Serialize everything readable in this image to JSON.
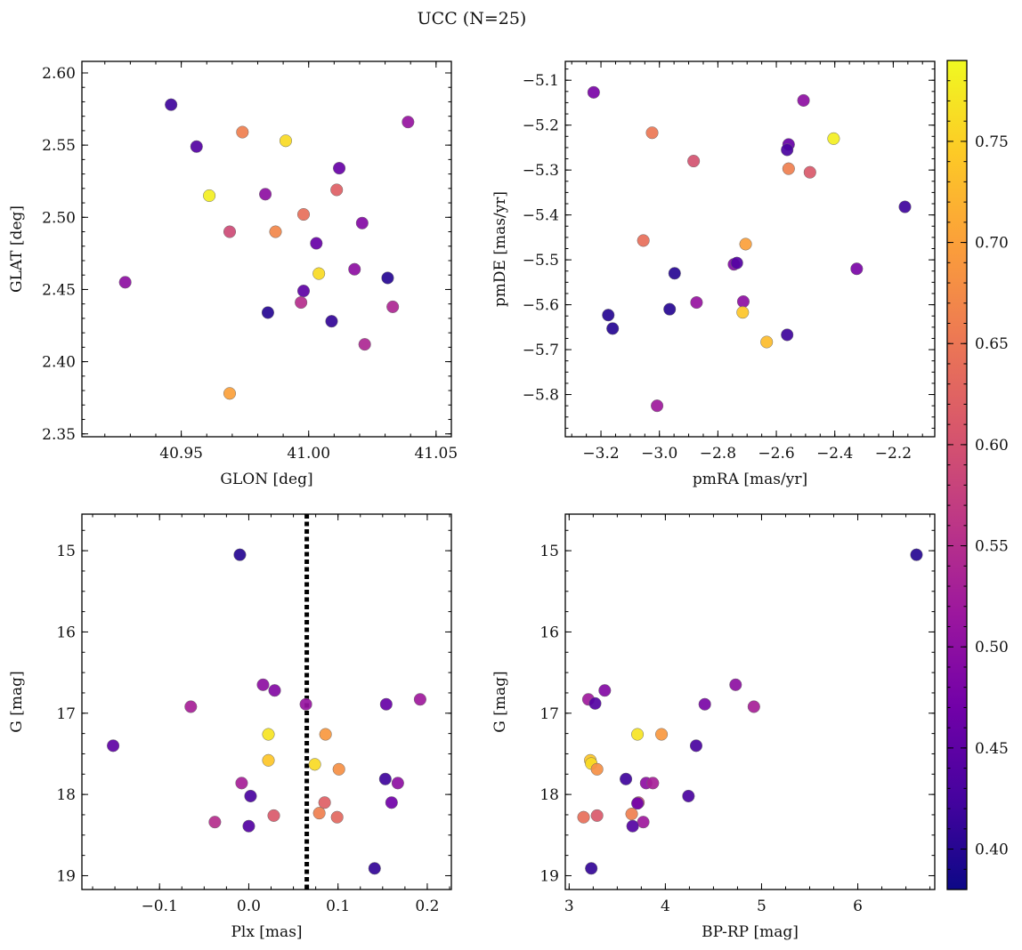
{
  "title": "UCC (N=25)",
  "colorbar": {
    "min": 0.38,
    "max": 0.79,
    "ticks": [
      0.4,
      0.45,
      0.5,
      0.55,
      0.6,
      0.65,
      0.7,
      0.75
    ],
    "tick_labels": [
      "0.40",
      "0.45",
      "0.50",
      "0.55",
      "0.60",
      "0.65",
      "0.70",
      "0.75"
    ],
    "colormap": [
      "#0d0887",
      "#46039f",
      "#7201a8",
      "#9c179e",
      "#bd3786",
      "#d8576b",
      "#ed7953",
      "#fb9f3a",
      "#fdca26",
      "#f0f921"
    ]
  },
  "chart_data": [
    {
      "type": "scatter",
      "title": "",
      "xlabel": "GLON [deg]",
      "ylabel": "GLAT [deg]",
      "xlim": [
        40.911,
        41.056
      ],
      "ylim": [
        2.348,
        2.608
      ],
      "x_ticks": [
        40.95,
        41.0,
        41.05
      ],
      "x_tick_labels": [
        "40.95",
        "41.00",
        "41.05"
      ],
      "y_ticks": [
        2.35,
        2.4,
        2.45,
        2.5,
        2.55,
        2.6
      ],
      "y_tick_labels": [
        "2.35",
        "2.40",
        "2.45",
        "2.50",
        "2.55",
        "2.60"
      ],
      "points": [
        {
          "x": 40.946,
          "y": 2.578,
          "c": 0.42
        },
        {
          "x": 40.956,
          "y": 2.549,
          "c": 0.44
        },
        {
          "x": 40.974,
          "y": 2.559,
          "c": 0.66
        },
        {
          "x": 40.991,
          "y": 2.553,
          "c": 0.76
        },
        {
          "x": 41.039,
          "y": 2.566,
          "c": 0.51
        },
        {
          "x": 41.012,
          "y": 2.534,
          "c": 0.46
        },
        {
          "x": 40.961,
          "y": 2.515,
          "c": 0.78
        },
        {
          "x": 40.983,
          "y": 2.516,
          "c": 0.5
        },
        {
          "x": 41.011,
          "y": 2.519,
          "c": 0.62
        },
        {
          "x": 40.998,
          "y": 2.502,
          "c": 0.64
        },
        {
          "x": 41.021,
          "y": 2.496,
          "c": 0.49
        },
        {
          "x": 40.969,
          "y": 2.49,
          "c": 0.59
        },
        {
          "x": 40.987,
          "y": 2.49,
          "c": 0.67
        },
        {
          "x": 41.003,
          "y": 2.482,
          "c": 0.46
        },
        {
          "x": 41.004,
          "y": 2.461,
          "c": 0.76
        },
        {
          "x": 41.018,
          "y": 2.464,
          "c": 0.5
        },
        {
          "x": 40.928,
          "y": 2.455,
          "c": 0.5
        },
        {
          "x": 41.031,
          "y": 2.458,
          "c": 0.4
        },
        {
          "x": 40.998,
          "y": 2.449,
          "c": 0.45
        },
        {
          "x": 40.997,
          "y": 2.441,
          "c": 0.55
        },
        {
          "x": 41.033,
          "y": 2.438,
          "c": 0.54
        },
        {
          "x": 40.984,
          "y": 2.434,
          "c": 0.4
        },
        {
          "x": 41.009,
          "y": 2.428,
          "c": 0.41
        },
        {
          "x": 41.022,
          "y": 2.412,
          "c": 0.54
        },
        {
          "x": 40.969,
          "y": 2.378,
          "c": 0.7
        }
      ]
    },
    {
      "type": "scatter",
      "title": "",
      "xlabel": "pmRA [mas/yr]",
      "ylabel": "pmDE [mas/yr]",
      "xlim": [
        -3.322,
        -2.058
      ],
      "ylim": [
        -5.894,
        -5.058
      ],
      "x_ticks": [
        -3.2,
        -3.0,
        -2.8,
        -2.6,
        -2.4,
        -2.2
      ],
      "x_tick_labels": [
        "−3.2",
        "−3.0",
        "−2.8",
        "−2.6",
        "−2.4",
        "−2.2"
      ],
      "y_ticks": [
        -5.8,
        -5.7,
        -5.6,
        -5.5,
        -5.4,
        -5.3,
        -5.2,
        -5.1
      ],
      "y_tick_labels": [
        "−5.8",
        "−5.7",
        "−5.6",
        "−5.5",
        "−5.4",
        "−5.3",
        "−5.2",
        "−5.1"
      ],
      "points": [
        {
          "x": -3.225,
          "y": -5.127,
          "c": 0.48
        },
        {
          "x": -2.507,
          "y": -5.145,
          "c": 0.5
        },
        {
          "x": -3.025,
          "y": -5.217,
          "c": 0.65
        },
        {
          "x": -2.404,
          "y": -5.23,
          "c": 0.78
        },
        {
          "x": -2.558,
          "y": -5.243,
          "c": 0.46
        },
        {
          "x": -2.563,
          "y": -5.255,
          "c": 0.43
        },
        {
          "x": -2.883,
          "y": -5.28,
          "c": 0.6
        },
        {
          "x": -2.558,
          "y": -5.297,
          "c": 0.66
        },
        {
          "x": -2.485,
          "y": -5.305,
          "c": 0.61
        },
        {
          "x": -2.16,
          "y": -5.382,
          "c": 0.42
        },
        {
          "x": -3.055,
          "y": -5.457,
          "c": 0.64
        },
        {
          "x": -2.705,
          "y": -5.465,
          "c": 0.7
        },
        {
          "x": -2.745,
          "y": -5.51,
          "c": 0.49
        },
        {
          "x": -2.735,
          "y": -5.507,
          "c": 0.44
        },
        {
          "x": -2.325,
          "y": -5.52,
          "c": 0.48
        },
        {
          "x": -2.948,
          "y": -5.53,
          "c": 0.4
        },
        {
          "x": -2.713,
          "y": -5.593,
          "c": 0.5
        },
        {
          "x": -2.873,
          "y": -5.595,
          "c": 0.51
        },
        {
          "x": -2.965,
          "y": -5.61,
          "c": 0.4
        },
        {
          "x": -2.715,
          "y": -5.617,
          "c": 0.74
        },
        {
          "x": -3.175,
          "y": -5.623,
          "c": 0.4
        },
        {
          "x": -3.16,
          "y": -5.653,
          "c": 0.4
        },
        {
          "x": -2.563,
          "y": -5.667,
          "c": 0.42
        },
        {
          "x": -2.633,
          "y": -5.683,
          "c": 0.73
        },
        {
          "x": -3.008,
          "y": -5.825,
          "c": 0.52
        }
      ]
    },
    {
      "type": "scatter",
      "title": "",
      "xlabel": "Plx [mas]",
      "ylabel": "G [mag]",
      "xlim": [
        -0.187,
        0.227
      ],
      "ylim": [
        19.17,
        14.55
      ],
      "y_inverted": true,
      "x_ticks": [
        -0.1,
        0.0,
        0.1,
        0.2
      ],
      "x_tick_labels": [
        "−0.1",
        "0.0",
        "0.1",
        "0.2"
      ],
      "y_ticks": [
        15,
        16,
        17,
        18,
        19
      ],
      "y_tick_labels": [
        "15",
        "16",
        "17",
        "18",
        "19"
      ],
      "vline": {
        "x": 0.065,
        "style": "dotted",
        "color": "#000000"
      },
      "points": [
        {
          "x": -0.01,
          "y": 15.05,
          "c": 0.4
        },
        {
          "x": 0.016,
          "y": 16.65,
          "c": 0.5
        },
        {
          "x": 0.029,
          "y": 16.72,
          "c": 0.49
        },
        {
          "x": 0.192,
          "y": 16.83,
          "c": 0.52
        },
        {
          "x": -0.065,
          "y": 16.92,
          "c": 0.53
        },
        {
          "x": 0.064,
          "y": 16.89,
          "c": 0.51
        },
        {
          "x": 0.154,
          "y": 16.89,
          "c": 0.46
        },
        {
          "x": -0.152,
          "y": 17.4,
          "c": 0.45
        },
        {
          "x": 0.022,
          "y": 17.26,
          "c": 0.77
        },
        {
          "x": 0.086,
          "y": 17.26,
          "c": 0.69
        },
        {
          "x": 0.022,
          "y": 17.58,
          "c": 0.74
        },
        {
          "x": 0.074,
          "y": 17.63,
          "c": 0.76
        },
        {
          "x": 0.101,
          "y": 17.69,
          "c": 0.68
        },
        {
          "x": 0.153,
          "y": 17.81,
          "c": 0.42
        },
        {
          "x": 0.167,
          "y": 17.86,
          "c": 0.5
        },
        {
          "x": -0.008,
          "y": 17.86,
          "c": 0.53
        },
        {
          "x": 0.002,
          "y": 18.02,
          "c": 0.43
        },
        {
          "x": 0.085,
          "y": 18.1,
          "c": 0.62
        },
        {
          "x": 0.16,
          "y": 18.1,
          "c": 0.47
        },
        {
          "x": 0.079,
          "y": 18.23,
          "c": 0.66
        },
        {
          "x": 0.028,
          "y": 18.26,
          "c": 0.61
        },
        {
          "x": 0.099,
          "y": 18.28,
          "c": 0.63
        },
        {
          "x": -0.038,
          "y": 18.34,
          "c": 0.55
        },
        {
          "x": 0.0,
          "y": 18.39,
          "c": 0.44
        },
        {
          "x": 0.141,
          "y": 18.91,
          "c": 0.41
        }
      ]
    },
    {
      "type": "scatter",
      "title": "",
      "xlabel": "BP-RP [mag]",
      "ylabel": "G [mag]",
      "xlim": [
        2.96,
        6.8
      ],
      "ylim": [
        19.17,
        14.55
      ],
      "y_inverted": true,
      "x_ticks": [
        3,
        4,
        5,
        6
      ],
      "x_tick_labels": [
        "3",
        "4",
        "5",
        "6"
      ],
      "y_ticks": [
        15,
        16,
        17,
        18,
        19
      ],
      "y_tick_labels": [
        "15",
        "16",
        "17",
        "18",
        "19"
      ],
      "points": [
        {
          "x": 6.61,
          "y": 15.05,
          "c": 0.4
        },
        {
          "x": 4.73,
          "y": 16.65,
          "c": 0.5
        },
        {
          "x": 3.37,
          "y": 16.72,
          "c": 0.49
        },
        {
          "x": 3.2,
          "y": 16.83,
          "c": 0.52
        },
        {
          "x": 3.27,
          "y": 16.88,
          "c": 0.44
        },
        {
          "x": 4.41,
          "y": 16.89,
          "c": 0.48
        },
        {
          "x": 4.92,
          "y": 16.92,
          "c": 0.53
        },
        {
          "x": 3.71,
          "y": 17.26,
          "c": 0.77
        },
        {
          "x": 3.96,
          "y": 17.26,
          "c": 0.69
        },
        {
          "x": 4.32,
          "y": 17.4,
          "c": 0.43
        },
        {
          "x": 3.22,
          "y": 17.58,
          "c": 0.74
        },
        {
          "x": 3.23,
          "y": 17.62,
          "c": 0.76
        },
        {
          "x": 3.29,
          "y": 17.69,
          "c": 0.68
        },
        {
          "x": 3.59,
          "y": 17.81,
          "c": 0.42
        },
        {
          "x": 3.8,
          "y": 17.86,
          "c": 0.5
        },
        {
          "x": 3.87,
          "y": 17.86,
          "c": 0.53
        },
        {
          "x": 4.24,
          "y": 18.02,
          "c": 0.43
        },
        {
          "x": 3.72,
          "y": 18.1,
          "c": 0.59
        },
        {
          "x": 3.71,
          "y": 18.11,
          "c": 0.47
        },
        {
          "x": 3.65,
          "y": 18.24,
          "c": 0.66
        },
        {
          "x": 3.29,
          "y": 18.26,
          "c": 0.61
        },
        {
          "x": 3.15,
          "y": 18.28,
          "c": 0.64
        },
        {
          "x": 3.77,
          "y": 18.34,
          "c": 0.52
        },
        {
          "x": 3.66,
          "y": 18.39,
          "c": 0.44
        },
        {
          "x": 3.23,
          "y": 18.91,
          "c": 0.41
        }
      ]
    }
  ]
}
